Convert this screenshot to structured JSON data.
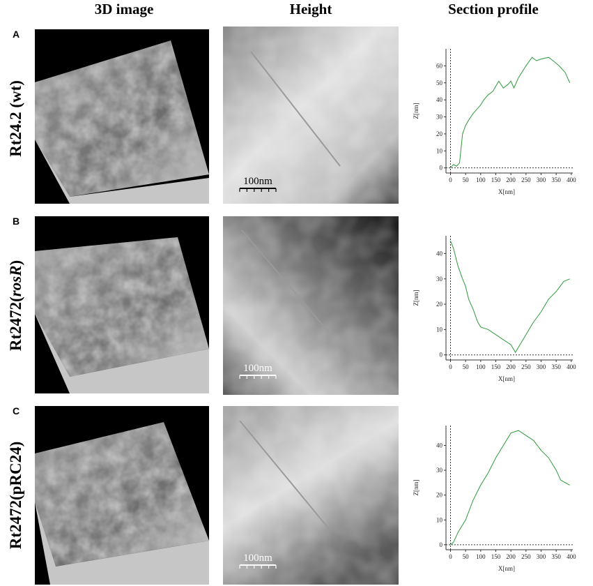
{
  "headers": [
    "3D image",
    "Height",
    "Section profile"
  ],
  "panels": [
    {
      "letter": "A",
      "label": [
        "Rt24.2 (wt)"
      ],
      "scale_bar": "100nm",
      "scale_bar_color": "#000000"
    },
    {
      "letter": "B",
      "label": [
        "Rt2472(",
        "rosR",
        ")"
      ],
      "scale_bar": "100nm",
      "scale_bar_color": "#ffffff"
    },
    {
      "letter": "C",
      "label": [
        "Rt2472(pRC24)"
      ],
      "scale_bar": "100nm",
      "scale_bar_color": "#ffffff"
    }
  ],
  "chart_data": [
    {
      "type": "line",
      "xlabel": "X[nm]",
      "ylabel": "Z[nm]",
      "x": [
        0,
        10,
        20,
        30,
        40,
        50,
        60,
        75,
        90,
        100,
        110,
        125,
        140,
        150,
        160,
        175,
        190,
        200,
        210,
        225,
        250,
        270,
        285,
        300,
        325,
        340,
        360,
        380,
        395
      ],
      "series": [
        {
          "color": "#2e9a3a",
          "values": [
            0,
            2,
            1,
            3,
            20,
            25,
            28,
            32,
            35,
            37,
            40,
            43,
            45,
            48,
            51,
            47,
            49,
            51,
            47,
            53,
            60,
            65,
            63,
            64,
            65,
            63,
            60,
            56,
            50
          ]
        }
      ],
      "xlim": [
        -15,
        405
      ],
      "ylim": [
        -3,
        70
      ],
      "xticks": [
        0,
        50,
        100,
        150,
        200,
        250,
        300,
        350,
        400
      ],
      "yticks": [
        0,
        10,
        20,
        30,
        40,
        50,
        60
      ]
    },
    {
      "type": "line",
      "xlabel": "X[nm]",
      "ylabel": "Z[nm]",
      "x": [
        0,
        10,
        25,
        40,
        50,
        60,
        75,
        90,
        100,
        125,
        150,
        175,
        200,
        215,
        225,
        250,
        275,
        300,
        325,
        350,
        375,
        395
      ],
      "series": [
        {
          "color": "#2e9a3a",
          "values": [
            45,
            42,
            35,
            30,
            27,
            22,
            18,
            13,
            11,
            10,
            8,
            6,
            4,
            1,
            3,
            8,
            13,
            17,
            22,
            25,
            29,
            30
          ]
        }
      ],
      "xlim": [
        -15,
        405
      ],
      "ylim": [
        -2,
        47
      ],
      "xticks": [
        0,
        50,
        100,
        150,
        200,
        250,
        300,
        350,
        400
      ],
      "yticks": [
        0,
        10,
        20,
        30,
        40
      ]
    },
    {
      "type": "line",
      "xlabel": "X[nm]",
      "ylabel": "Z[nm]",
      "x": [
        0,
        10,
        25,
        50,
        75,
        100,
        125,
        150,
        175,
        200,
        225,
        250,
        275,
        300,
        325,
        350,
        365,
        380,
        395
      ],
      "series": [
        {
          "color": "#2e9a3a",
          "values": [
            0,
            1,
            5,
            10,
            18,
            24,
            29,
            35,
            40,
            45,
            46,
            44,
            42,
            38,
            35,
            30,
            26,
            25,
            24
          ]
        }
      ],
      "xlim": [
        -15,
        405
      ],
      "ylim": [
        -2,
        48
      ],
      "xticks": [
        0,
        50,
        100,
        150,
        200,
        250,
        300,
        350,
        400
      ],
      "yticks": [
        0,
        10,
        20,
        30,
        40
      ]
    }
  ]
}
